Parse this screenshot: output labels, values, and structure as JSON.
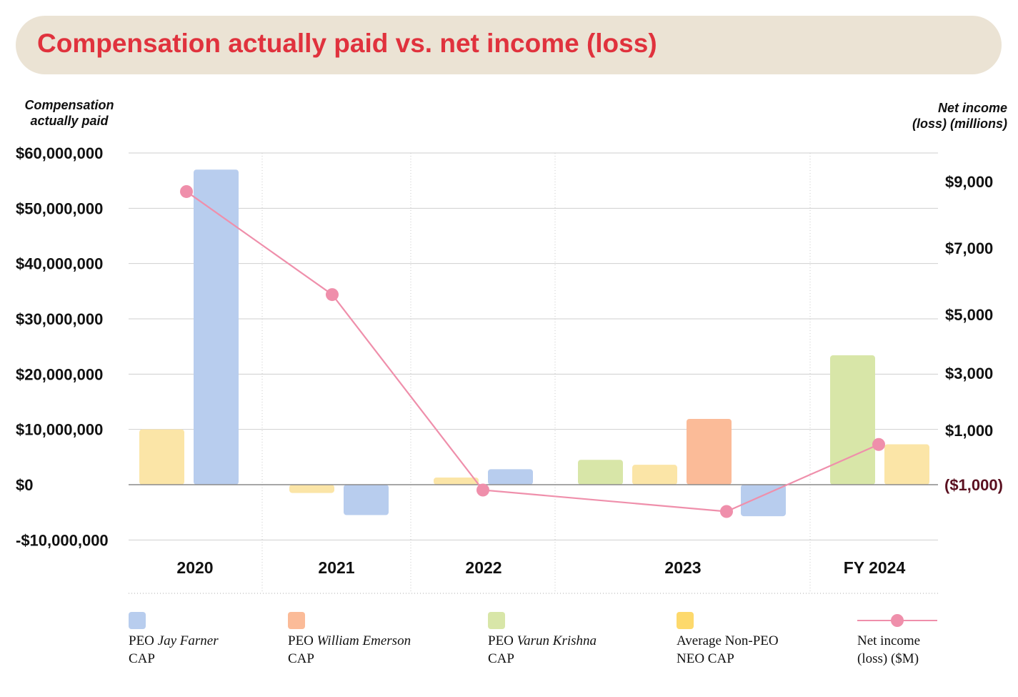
{
  "title": "Compensation actually paid vs. net income (loss)",
  "left_axis_title": [
    "Compensation",
    "actually paid"
  ],
  "right_axis_title": [
    "Net income",
    "(loss) (millions)"
  ],
  "colors": {
    "title": "#e0323d",
    "banner": "#ebe3d4",
    "peo_jay": "#b8cdee",
    "peo_william": "#fbbb98",
    "peo_varun": "#d8e6a8",
    "non_peo": "#fbe5a7",
    "non_peo_legend": "#fdd96c",
    "net_income": "#ef8fab",
    "neg_label": "#5a1020"
  },
  "legend": [
    {
      "pre": "PEO ",
      "name": "Jay Farner",
      "line2": "CAP",
      "color": "#b8cdee"
    },
    {
      "pre": "PEO ",
      "name": "William Emerson",
      "line2": "CAP",
      "color": "#fbbb98"
    },
    {
      "pre": "PEO ",
      "name": "Varun Krishna",
      "line2": "CAP",
      "color": "#d8e6a8"
    },
    {
      "pre": "Average Non-PEO",
      "name": "",
      "line2": "NEO CAP",
      "color": "#fdd96c"
    },
    {
      "pre": "Net income",
      "name": "",
      "line2": "(loss) ($M)",
      "color": "#ef8fab"
    }
  ],
  "chart_data": {
    "type": "bar+line",
    "title": "Compensation actually paid vs. net income (loss)",
    "categories": [
      "2020",
      "2021",
      "2022",
      "2023",
      "FY 2024"
    ],
    "left_axis": {
      "label": "Compensation actually paid",
      "range": [
        -10000000,
        60000000
      ],
      "ticks": [
        60000000,
        50000000,
        40000000,
        30000000,
        20000000,
        10000000,
        0,
        -10000000
      ],
      "tick_labels": [
        "$60,000,000",
        "$50,000,000",
        "$40,000,000",
        "$30,000,000",
        "$20,000,000",
        "$10,000,000",
        "$0",
        "-$10,000,000"
      ]
    },
    "right_axis": {
      "label": "Net income (loss) (millions)",
      "tick_values": [
        9000,
        7000,
        5000,
        3000,
        1000,
        -1000
      ],
      "tick_labels": [
        "$9,000",
        "$7,000",
        "$5,000",
        "$3,000",
        "$1,000",
        "($1,000)"
      ]
    },
    "bar_groups": [
      {
        "category": "2020",
        "bars": [
          {
            "series": "Average Non-PEO NEO CAP",
            "value": 10000000
          },
          {
            "series": "PEO (Jay Farner) CAP",
            "value": 57000000
          }
        ]
      },
      {
        "category": "2021",
        "bars": [
          {
            "series": "Average Non-PEO NEO CAP",
            "value": -1500000
          },
          {
            "series": "PEO (Jay Farner) CAP",
            "value": -5500000
          }
        ]
      },
      {
        "category": "2022",
        "bars": [
          {
            "series": "Average Non-PEO NEO CAP",
            "value": 1300000
          },
          {
            "series": "PEO (Jay Farner) CAP",
            "value": 2800000
          }
        ]
      },
      {
        "category": "2023",
        "bars": [
          {
            "series": "PEO (Varun Krishna) CAP",
            "value": 4500000
          },
          {
            "series": "Average Non-PEO NEO CAP",
            "value": 3600000
          },
          {
            "series": "PEO (William Emerson) CAP",
            "value": 11900000
          },
          {
            "series": "PEO (Jay Farner) CAP",
            "value": -5700000
          }
        ]
      },
      {
        "category": "FY 2024",
        "bars": [
          {
            "series": "PEO (Varun Krishna) CAP",
            "value": 23400000
          },
          {
            "series": "Average Non-PEO NEO CAP",
            "value": 7300000
          }
        ]
      }
    ],
    "net_income_series": {
      "name": "Net income (loss) ($M)",
      "points": [
        {
          "category": "2020",
          "value": 8700
        },
        {
          "category": "2021",
          "value": 5600
        },
        {
          "category": "2022",
          "value": -1200
        },
        {
          "category": "2023",
          "value": -2000
        },
        {
          "category": "FY 2024",
          "value": 500
        }
      ]
    }
  }
}
